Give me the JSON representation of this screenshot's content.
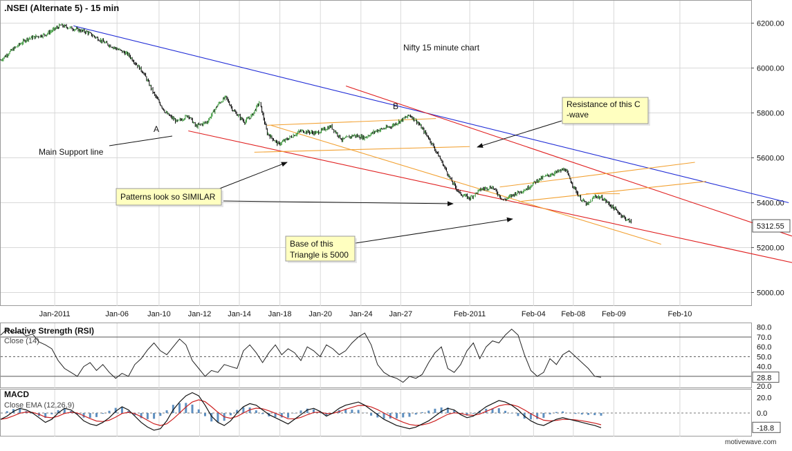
{
  "header": {
    "title": ".NSEI (Alternate 5) - 15 min"
  },
  "watermark": "motivewave.com",
  "annotations": {
    "chart_label": "Nifty 15 minute chart",
    "wave_a": "A",
    "wave_b": "B",
    "support": "Main Support line",
    "resistance_1": "Resistance of this C",
    "resistance_2": "-wave",
    "patterns": "Patterns look so SIMILAR",
    "base_1": "Base of this",
    "base_2": "Triangle is 5000"
  },
  "colors": {
    "background": "#ffffff",
    "grid": "#d8d8d8",
    "up_candle": "#2a8f2a",
    "down_candle": "#000000",
    "trend_blue": "#1f2bd6",
    "trend_red": "#e01e1e",
    "channel_orange": "#f2a030",
    "note_fill": "#ffffc0",
    "macd_line": "#111111",
    "signal_line": "#cc1f1f",
    "histogram": "#5e8fbf",
    "rsi_line": "#222222",
    "rsi_oversold_fill": "#c9a0a0",
    "rsi_overbought_fill": "#a8d8a8"
  },
  "chart_data": [
    {
      "type": "candlestick",
      "title": ".NSEI (Alternate 5) - 15 min",
      "subtitle": "Nifty 15 minute chart",
      "x_tick_labels": [
        "Jan-2011",
        "Jan-06",
        "Jan-10",
        "Jan-12",
        "Jan-14",
        "Jan-18",
        "Jan-20",
        "Jan-24",
        "Jan-27",
        "Feb-2011",
        "Feb-04",
        "Feb-08",
        "Feb-09",
        "Feb-10"
      ],
      "y_ticks": [
        5000,
        5200,
        5400,
        5600,
        5800,
        6000,
        6200
      ],
      "y_tick_labels": [
        "5000.00",
        "5200.00",
        "5400.00",
        "5600.00",
        "5800.00",
        "6000.00",
        "6200.00"
      ],
      "ylim": [
        4940,
        6300
      ],
      "last_price": 5312.55,
      "last_price_label": "5312.55",
      "price_path": [
        [
          0,
          6035
        ],
        [
          0.015,
          6080
        ],
        [
          0.035,
          6130
        ],
        [
          0.06,
          6150
        ],
        [
          0.08,
          6190
        ],
        [
          0.097,
          6175
        ],
        [
          0.115,
          6160
        ],
        [
          0.14,
          6110
        ],
        [
          0.17,
          6060
        ],
        [
          0.19,
          5980
        ],
        [
          0.205,
          5880
        ],
        [
          0.22,
          5800
        ],
        [
          0.235,
          5760
        ],
        [
          0.25,
          5790
        ],
        [
          0.26,
          5740
        ],
        [
          0.275,
          5760
        ],
        [
          0.29,
          5840
        ],
        [
          0.3,
          5870
        ],
        [
          0.31,
          5810
        ],
        [
          0.325,
          5760
        ],
        [
          0.335,
          5790
        ],
        [
          0.345,
          5850
        ],
        [
          0.355,
          5710
        ],
        [
          0.37,
          5660
        ],
        [
          0.385,
          5690
        ],
        [
          0.4,
          5720
        ],
        [
          0.42,
          5710
        ],
        [
          0.44,
          5740
        ],
        [
          0.455,
          5680
        ],
        [
          0.47,
          5700
        ],
        [
          0.485,
          5690
        ],
        [
          0.5,
          5720
        ],
        [
          0.52,
          5740
        ],
        [
          0.535,
          5770
        ],
        [
          0.545,
          5790
        ],
        [
          0.555,
          5760
        ],
        [
          0.57,
          5690
        ],
        [
          0.585,
          5600
        ],
        [
          0.6,
          5500
        ],
        [
          0.612,
          5440
        ],
        [
          0.625,
          5420
        ],
        [
          0.64,
          5460
        ],
        [
          0.655,
          5470
        ],
        [
          0.67,
          5410
        ],
        [
          0.685,
          5440
        ],
        [
          0.7,
          5460
        ],
        [
          0.715,
          5500
        ],
        [
          0.728,
          5520
        ],
        [
          0.74,
          5535
        ],
        [
          0.752,
          5550
        ],
        [
          0.762,
          5480
        ],
        [
          0.772,
          5420
        ],
        [
          0.782,
          5390
        ],
        [
          0.792,
          5430
        ],
        [
          0.802,
          5420
        ],
        [
          0.812,
          5390
        ],
        [
          0.822,
          5360
        ],
        [
          0.832,
          5330
        ],
        [
          0.84,
          5312.55
        ]
      ],
      "trendlines": [
        {
          "color": "blue",
          "from": [
            0.097,
            6188
          ],
          "to": [
            1.05,
            5400
          ]
        },
        {
          "color": "red",
          "from": [
            0.46,
            5920
          ],
          "to": [
            1.1,
            5200
          ]
        },
        {
          "color": "red",
          "from": [
            0.25,
            5720
          ],
          "to": [
            1.1,
            5100
          ]
        },
        {
          "color": "orange",
          "from": [
            0.355,
            5745
          ],
          "to": [
            0.58,
            5775
          ]
        },
        {
          "color": "orange",
          "from": [
            0.338,
            5625
          ],
          "to": [
            0.625,
            5650
          ]
        },
        {
          "color": "orange",
          "from": [
            0.36,
            5745
          ],
          "to": [
            0.88,
            5215
          ]
        },
        {
          "color": "orange",
          "from": [
            0.665,
            5470
          ],
          "to": [
            0.925,
            5580
          ]
        },
        {
          "color": "orange",
          "from": [
            0.69,
            5405
          ],
          "to": [
            0.94,
            5495
          ]
        },
        {
          "color": "orange",
          "from": [
            0.78,
            5440
          ],
          "to": [
            0.825,
            5440
          ]
        }
      ]
    },
    {
      "type": "line",
      "title": "Relative Strength (RSI)",
      "subtitle": "Close (14)",
      "y_tick_labels": [
        "20.0",
        "30.0",
        "40.0",
        "50.0",
        "60.0",
        "70.0",
        "80.0"
      ],
      "y_ticks": [
        20,
        30,
        40,
        50,
        60,
        70,
        80
      ],
      "ylim": [
        18,
        84
      ],
      "overbought": 70,
      "oversold": 30,
      "last_value": 28.8,
      "last_value_label": "28.8",
      "overbought_label": "70.0",
      "midline_label": "50.0",
      "values": [
        72,
        78,
        74,
        76,
        71,
        73,
        65,
        62,
        58,
        46,
        38,
        34,
        30,
        40,
        44,
        36,
        42,
        34,
        28,
        33,
        30,
        42,
        48,
        57,
        64,
        56,
        52,
        60,
        68,
        62,
        46,
        38,
        30,
        36,
        34,
        42,
        40,
        38,
        56,
        62,
        54,
        44,
        54,
        62,
        52,
        58,
        54,
        46,
        60,
        56,
        50,
        62,
        58,
        52,
        56,
        64,
        70,
        74,
        62,
        42,
        34,
        30,
        28,
        24,
        30,
        28,
        32,
        44,
        54,
        60,
        38,
        34,
        42,
        56,
        64,
        48,
        60,
        66,
        64,
        72,
        78,
        72,
        52,
        36,
        30,
        34,
        48,
        42,
        52,
        56,
        50,
        44,
        38,
        30,
        29
      ]
    },
    {
      "type": "line",
      "title": "MACD",
      "subtitle": "Close EMA (12,26,9)",
      "y_tick_labels": [
        "-20.0",
        "0.0",
        "20.0"
      ],
      "y_ticks": [
        -20,
        0,
        20
      ],
      "ylim": [
        -30,
        30
      ],
      "last_value": -18.8,
      "last_value_label": "-18.8",
      "macd": [
        -8,
        -4,
        2,
        6,
        4,
        0,
        -6,
        -12,
        -8,
        0,
        6,
        4,
        -2,
        -10,
        -14,
        -16,
        -12,
        -6,
        2,
        8,
        4,
        -4,
        -12,
        -18,
        -22,
        -20,
        -10,
        4,
        14,
        22,
        26,
        22,
        10,
        -4,
        -12,
        -16,
        -10,
        0,
        8,
        12,
        10,
        4,
        -2,
        -6,
        -10,
        -14,
        -8,
        -2,
        4,
        6,
        2,
        -4,
        0,
        6,
        10,
        12,
        14,
        10,
        4,
        -2,
        -8,
        -12,
        -16,
        -18,
        -20,
        -18,
        -14,
        -10,
        -4,
        2,
        6,
        4,
        -2,
        -6,
        -4,
        2,
        8,
        12,
        16,
        14,
        10,
        4,
        -4,
        -10,
        -14,
        -16,
        -12,
        -8,
        -6,
        -8,
        -10,
        -12,
        -14,
        -16,
        -18.8
      ]
    }
  ]
}
